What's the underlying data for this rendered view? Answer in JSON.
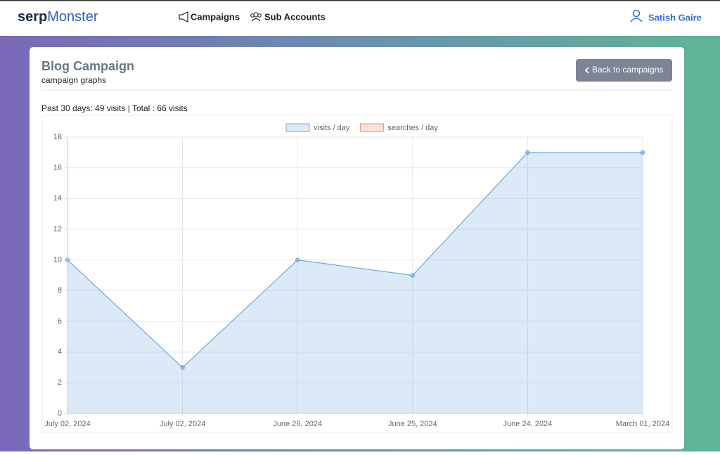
{
  "nav": {
    "logo": [
      "serp",
      "Monster"
    ],
    "items": [
      "Campaigns",
      "Sub Accounts"
    ],
    "user": "Satish Gaire"
  },
  "header": {
    "title": "Blog Campaign",
    "subtitle": "campaign graphs",
    "button": "Back to campaigns"
  },
  "stats": "Past 30 days: 49 visits | Total : 66 visits",
  "chart_data": {
    "type": "line",
    "categories": [
      "July 02, 2024",
      "July 02, 2024",
      "June 26, 2024",
      "June 25, 2024",
      "June 24, 2024",
      "March 01, 2024"
    ],
    "series": [
      {
        "name": "visits / day",
        "color": "#72a9e0",
        "values": [
          10,
          3,
          10,
          9,
          17,
          17
        ]
      },
      {
        "name": "searches / day",
        "color": "#f08a70",
        "values": [
          null,
          null,
          null,
          null,
          null,
          null
        ]
      }
    ],
    "ylim": [
      0,
      18
    ],
    "yticks": [
      0,
      2,
      4,
      6,
      8,
      10,
      12,
      14,
      16,
      18
    ],
    "grid": true,
    "legend": "top",
    "fill": true
  }
}
